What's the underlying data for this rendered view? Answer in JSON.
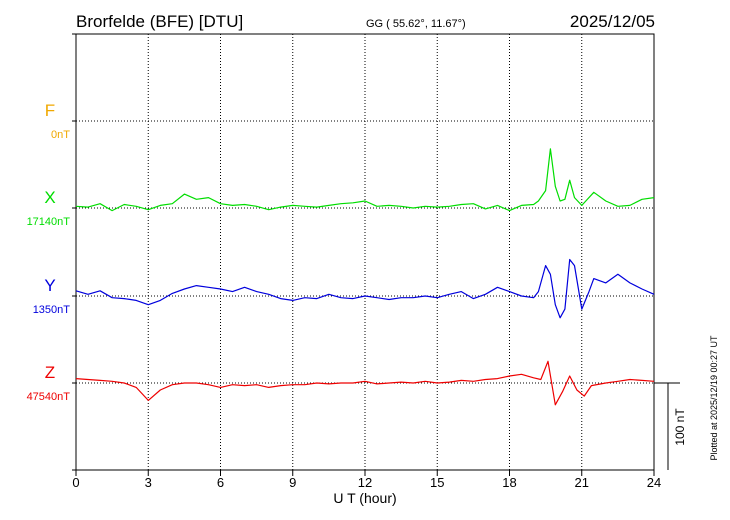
{
  "header": {
    "station": "Brorfelde (BFE)  [DTU]",
    "coords": "GG ( 55.62°,  11.67°)",
    "date": "2025/12/05"
  },
  "side_note": "Plotted at 2025/12/19 00:27 UT",
  "chart_data": {
    "type": "line",
    "title": "Brorfelde (BFE)  [DTU]",
    "xlabel": "U T (hour)",
    "xlim": [
      0,
      24
    ],
    "xticks": [
      0,
      3,
      6,
      9,
      12,
      15,
      18,
      21,
      24
    ],
    "xtick_labels": [
      "0",
      "3",
      "6",
      "9",
      "12",
      "15",
      "18",
      "21",
      "24"
    ],
    "grid": true,
    "scale_bar": {
      "value": 100,
      "label": "100 nT"
    },
    "series": [
      {
        "name": "F",
        "baseline_label": "0nT",
        "baseline_nT": 0,
        "color": "#f0a800",
        "points": []
      },
      {
        "name": "X",
        "baseline_label": "17140nT",
        "baseline_nT": 17140,
        "color": "#00dd00",
        "points": [
          [
            0,
            2
          ],
          [
            0.5,
            1
          ],
          [
            1,
            5
          ],
          [
            1.5,
            -3
          ],
          [
            2,
            4
          ],
          [
            2.5,
            2
          ],
          [
            3,
            -2
          ],
          [
            3.5,
            3
          ],
          [
            4,
            5
          ],
          [
            4.5,
            16
          ],
          [
            5,
            10
          ],
          [
            5.5,
            12
          ],
          [
            6,
            5
          ],
          [
            6.5,
            3
          ],
          [
            7,
            4
          ],
          [
            7.5,
            2
          ],
          [
            8,
            -2
          ],
          [
            8.5,
            1
          ],
          [
            9,
            3
          ],
          [
            9.5,
            2
          ],
          [
            10,
            1
          ],
          [
            10.5,
            3
          ],
          [
            11,
            5
          ],
          [
            11.5,
            6
          ],
          [
            12,
            8
          ],
          [
            12.5,
            2
          ],
          [
            13,
            3
          ],
          [
            13.5,
            2
          ],
          [
            14,
            0
          ],
          [
            14.5,
            2
          ],
          [
            15,
            1
          ],
          [
            15.5,
            2
          ],
          [
            16,
            4
          ],
          [
            16.5,
            5
          ],
          [
            17,
            -1
          ],
          [
            17.5,
            3
          ],
          [
            18,
            -3
          ],
          [
            18.5,
            3
          ],
          [
            19,
            4
          ],
          [
            19.2,
            8
          ],
          [
            19.5,
            20
          ],
          [
            19.7,
            68
          ],
          [
            19.9,
            25
          ],
          [
            20.1,
            8
          ],
          [
            20.3,
            10
          ],
          [
            20.5,
            32
          ],
          [
            20.7,
            12
          ],
          [
            21,
            3
          ],
          [
            21.5,
            18
          ],
          [
            22,
            8
          ],
          [
            22.5,
            2
          ],
          [
            23,
            3
          ],
          [
            23.5,
            10
          ],
          [
            24,
            12
          ]
        ]
      },
      {
        "name": "Y",
        "baseline_label": "1350nT",
        "baseline_nT": 1350,
        "color": "#0000dd",
        "points": [
          [
            0,
            6
          ],
          [
            0.5,
            2
          ],
          [
            1,
            6
          ],
          [
            1.5,
            -2
          ],
          [
            2,
            -3
          ],
          [
            2.5,
            -5
          ],
          [
            3,
            -10
          ],
          [
            3.5,
            -5
          ],
          [
            4,
            3
          ],
          [
            4.5,
            8
          ],
          [
            5,
            12
          ],
          [
            5.5,
            10
          ],
          [
            6,
            8
          ],
          [
            6.5,
            5
          ],
          [
            7,
            10
          ],
          [
            7.5,
            5
          ],
          [
            8,
            2
          ],
          [
            8.5,
            -3
          ],
          [
            9,
            -5
          ],
          [
            9.5,
            -2
          ],
          [
            10,
            -3
          ],
          [
            10.5,
            2
          ],
          [
            11,
            -2
          ],
          [
            11.5,
            -3
          ],
          [
            12,
            0
          ],
          [
            12.5,
            -2
          ],
          [
            13,
            -4
          ],
          [
            13.5,
            -2
          ],
          [
            14,
            -2
          ],
          [
            14.5,
            0
          ],
          [
            15,
            -2
          ],
          [
            15.5,
            2
          ],
          [
            16,
            5
          ],
          [
            16.5,
            -3
          ],
          [
            17,
            2
          ],
          [
            17.5,
            10
          ],
          [
            18,
            5
          ],
          [
            18.5,
            0
          ],
          [
            19,
            -2
          ],
          [
            19.2,
            5
          ],
          [
            19.5,
            35
          ],
          [
            19.7,
            25
          ],
          [
            19.9,
            -10
          ],
          [
            20.1,
            -25
          ],
          [
            20.3,
            -15
          ],
          [
            20.5,
            42
          ],
          [
            20.7,
            35
          ],
          [
            21,
            -15
          ],
          [
            21.3,
            5
          ],
          [
            21.5,
            20
          ],
          [
            22,
            15
          ],
          [
            22.5,
            25
          ],
          [
            23,
            15
          ],
          [
            23.5,
            8
          ],
          [
            24,
            2
          ]
        ]
      },
      {
        "name": "Z",
        "baseline_label": "47540nT",
        "baseline_nT": 47540,
        "color": "#ee0000",
        "points": [
          [
            0,
            5
          ],
          [
            0.5,
            4
          ],
          [
            1,
            3
          ],
          [
            1.5,
            2
          ],
          [
            2,
            0
          ],
          [
            2.5,
            -5
          ],
          [
            3,
            -20
          ],
          [
            3.5,
            -8
          ],
          [
            4,
            -2
          ],
          [
            4.5,
            0
          ],
          [
            5,
            0
          ],
          [
            5.5,
            -2
          ],
          [
            6,
            -5
          ],
          [
            6.5,
            -2
          ],
          [
            7,
            -3
          ],
          [
            7.5,
            -2
          ],
          [
            8,
            -5
          ],
          [
            8.5,
            -3
          ],
          [
            9,
            -2
          ],
          [
            9.5,
            -2
          ],
          [
            10,
            0
          ],
          [
            10.5,
            -1
          ],
          [
            11,
            0
          ],
          [
            11.5,
            0
          ],
          [
            12,
            2
          ],
          [
            12.5,
            -1
          ],
          [
            13,
            0
          ],
          [
            13.5,
            1
          ],
          [
            14,
            0
          ],
          [
            14.5,
            2
          ],
          [
            15,
            0
          ],
          [
            15.5,
            1
          ],
          [
            16,
            3
          ],
          [
            16.5,
            2
          ],
          [
            17,
            4
          ],
          [
            17.5,
            5
          ],
          [
            18,
            8
          ],
          [
            18.5,
            10
          ],
          [
            19,
            6
          ],
          [
            19.3,
            4
          ],
          [
            19.6,
            25
          ],
          [
            19.9,
            -25
          ],
          [
            20.2,
            -10
          ],
          [
            20.5,
            8
          ],
          [
            20.8,
            -8
          ],
          [
            21.1,
            -15
          ],
          [
            21.4,
            -3
          ],
          [
            22,
            0
          ],
          [
            22.5,
            2
          ],
          [
            23,
            4
          ],
          [
            23.5,
            3
          ],
          [
            24,
            2
          ]
        ]
      }
    ]
  }
}
